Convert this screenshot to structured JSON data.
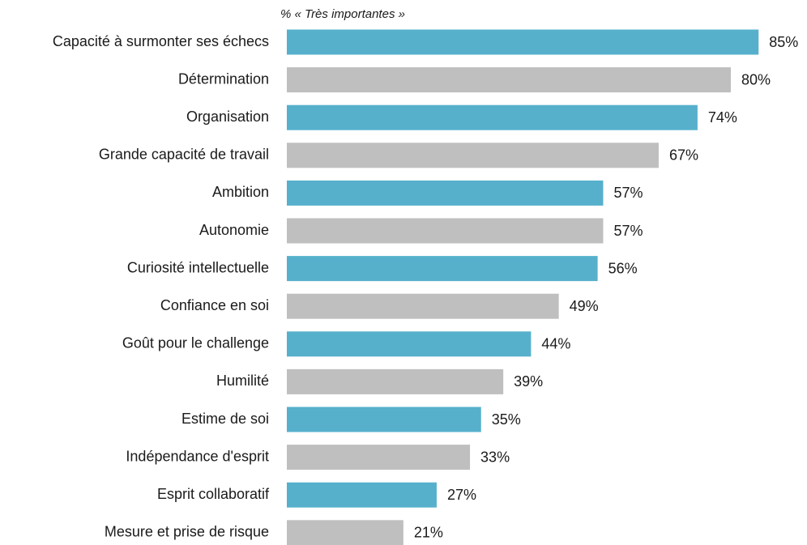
{
  "chart_data": {
    "type": "barh",
    "subtitle": "% « Très importantes »",
    "categories": [
      "Capacité à surmonter ses échecs",
      "Détermination",
      "Organisation",
      "Grande capacité de travail",
      "Ambition",
      "Autonomie",
      "Curiosité intellectuelle",
      "Confiance en soi",
      "Goût pour le challenge",
      "Humilité",
      "Estime de soi",
      "Indépendance d'esprit",
      "Esprit collaboratif",
      "Mesure et prise de risque"
    ],
    "values": [
      85,
      80,
      74,
      67,
      57,
      57,
      56,
      49,
      44,
      39,
      35,
      33,
      27,
      21
    ],
    "value_labels": [
      "85%",
      "80%",
      "74%",
      "67%",
      "57%",
      "57%",
      "56%",
      "49%",
      "44%",
      "39%",
      "35%",
      "33%",
      "27%",
      "21%"
    ],
    "colors": [
      "#56b0cc",
      "#bfbfbf",
      "#56b0cc",
      "#bfbfbf",
      "#56b0cc",
      "#bfbfbf",
      "#56b0cc",
      "#bfbfbf",
      "#56b0cc",
      "#bfbfbf",
      "#56b0cc",
      "#bfbfbf",
      "#56b0cc",
      "#bfbfbf"
    ],
    "xlim": [
      0,
      100
    ]
  }
}
